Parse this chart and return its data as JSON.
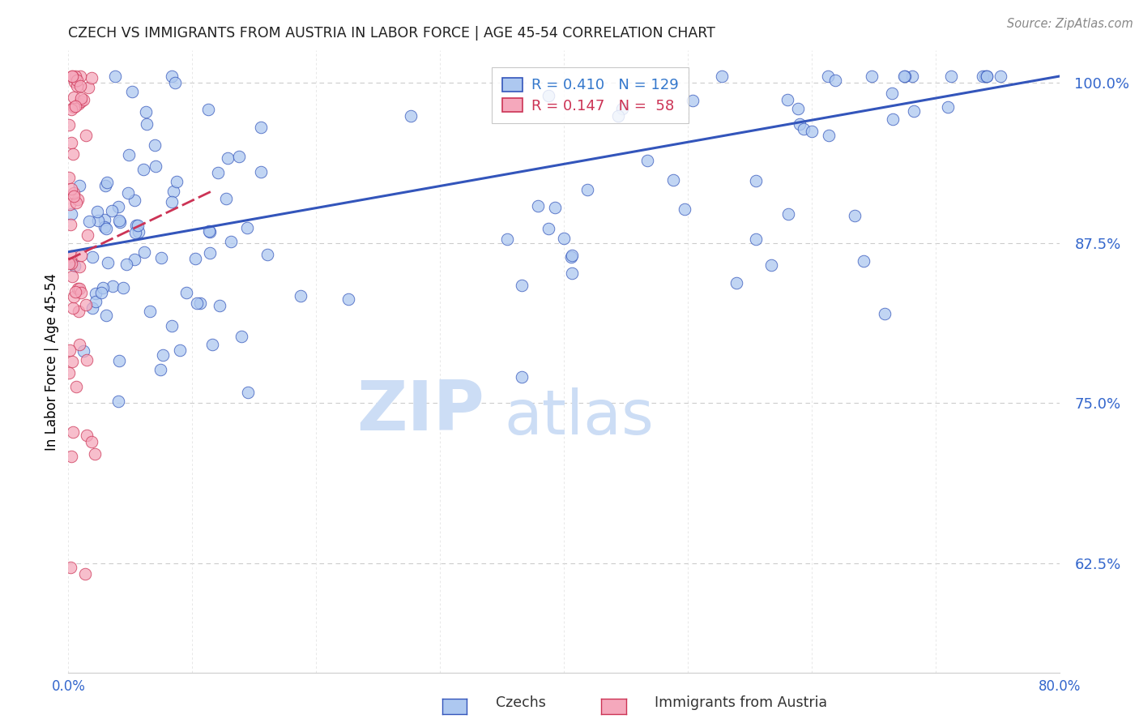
{
  "title": "CZECH VS IMMIGRANTS FROM AUSTRIA IN LABOR FORCE | AGE 45-54 CORRELATION CHART",
  "source": "Source: ZipAtlas.com",
  "ylabel": "In Labor Force | Age 45-54",
  "xlim": [
    0.0,
    0.8
  ],
  "ylim": [
    0.54,
    1.025
  ],
  "xticks": [
    0.0,
    0.1,
    0.2,
    0.3,
    0.4,
    0.5,
    0.6,
    0.7,
    0.8
  ],
  "xticklabels": [
    "0.0%",
    "",
    "",
    "",
    "",
    "",
    "",
    "",
    "80.0%"
  ],
  "yticks": [
    0.625,
    0.75,
    0.875,
    1.0
  ],
  "yticklabels": [
    "62.5%",
    "75.0%",
    "87.5%",
    "100.0%"
  ],
  "legend_blue_R": "0.410",
  "legend_blue_N": "129",
  "legend_pink_R": "0.147",
  "legend_pink_N": "58",
  "legend_label_blue": "Czechs",
  "legend_label_pink": "Immigrants from Austria",
  "dot_color_blue": "#adc8f0",
  "dot_color_pink": "#f5a8bc",
  "line_color_blue": "#3355bb",
  "line_color_pink": "#cc3355",
  "legend_text_blue": "#3377cc",
  "legend_text_pink": "#cc3355",
  "axis_color": "#3366cc",
  "grid_color": "#cccccc",
  "watermark_zip": "ZIP",
  "watermark_atlas": "atlas",
  "watermark_color": "#ccddf5",
  "title_color": "#222222",
  "blue_line_x0": 0.0,
  "blue_line_y0": 0.868,
  "blue_line_x1": 0.8,
  "blue_line_y1": 1.005,
  "pink_line_x0": 0.0,
  "pink_line_y0": 0.862,
  "pink_line_x1": 0.115,
  "pink_line_y1": 0.915
}
